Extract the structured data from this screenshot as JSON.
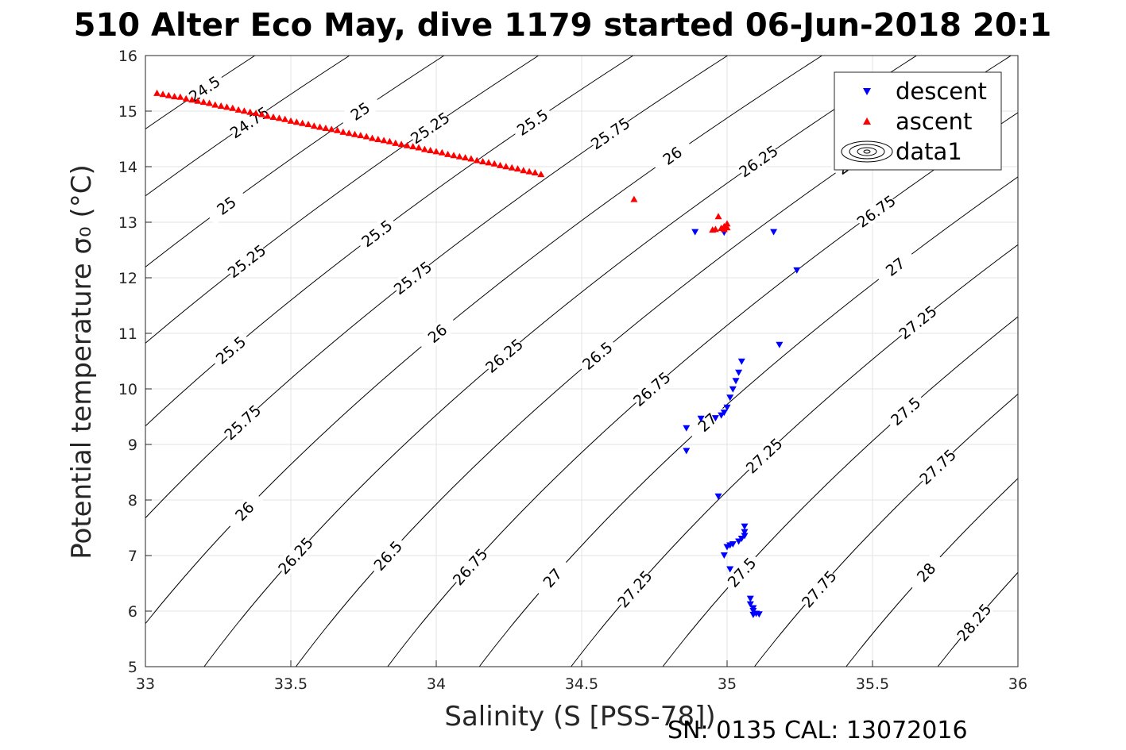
{
  "chart_data": {
    "type": "scatter",
    "title": "510 Alter Eco May, dive 1179 started 06-Jun-2018 20:1",
    "xlabel": "Salinity (S [PSS-78])",
    "ylabel": "Potential temperature σ₀ (°C)",
    "footer": "SN: 0135  CAL: 13072016",
    "xlim": [
      33,
      36
    ],
    "ylim": [
      5,
      16
    ],
    "xticks": [
      33,
      33.5,
      34,
      34.5,
      35,
      35.5,
      36
    ],
    "xtick_labels": [
      "33",
      "33.5",
      "34",
      "34.5",
      "35",
      "35.5",
      "36"
    ],
    "yticks": [
      5,
      6,
      7,
      8,
      9,
      10,
      11,
      12,
      13,
      14,
      15,
      16
    ],
    "ytick_labels": [
      "5",
      "6",
      "7",
      "8",
      "9",
      "10",
      "11",
      "12",
      "13",
      "14",
      "15",
      "16"
    ],
    "grid": true,
    "legend_position": "top-right",
    "legend": [
      {
        "label": "descent",
        "marker": "triangle-down",
        "color": "#0000ff"
      },
      {
        "label": "ascent",
        "marker": "triangle-up",
        "color": "#ff0000"
      },
      {
        "label": "data1",
        "marker": "contour",
        "color": "#000000"
      }
    ],
    "contours": {
      "levels": [
        24.5,
        24.75,
        25,
        25.25,
        25.5,
        25.75,
        26,
        26.25,
        26.5,
        26.75,
        27,
        27.25,
        27.5,
        27.75,
        28,
        28.25
      ],
      "level_labels": [
        "24.5",
        "24.75",
        "25",
        "25.25",
        "25.5",
        "25.75",
        "26",
        "26.25",
        "26.5",
        "26.75",
        "27",
        "27.25",
        "27.5",
        "27.75",
        "28",
        "28.25"
      ]
    },
    "series": [
      {
        "name": "descent",
        "color": "#0000ff",
        "marker": "triangle-down",
        "points": [
          [
            34.89,
            12.82
          ],
          [
            34.99,
            12.81
          ],
          [
            35.16,
            12.82
          ],
          [
            35.24,
            12.13
          ],
          [
            35.18,
            10.79
          ],
          [
            35.05,
            10.49
          ],
          [
            35.04,
            10.29
          ],
          [
            35.03,
            10.14
          ],
          [
            35.02,
            9.99
          ],
          [
            35.01,
            9.84
          ],
          [
            35.0,
            9.66
          ],
          [
            34.99,
            9.57
          ],
          [
            34.98,
            9.52
          ],
          [
            34.96,
            9.47
          ],
          [
            34.91,
            9.46
          ],
          [
            34.86,
            9.29
          ],
          [
            34.86,
            8.88
          ],
          [
            34.97,
            8.06
          ],
          [
            35.06,
            7.52
          ],
          [
            35.06,
            7.42
          ],
          [
            35.06,
            7.35
          ],
          [
            35.05,
            7.3
          ],
          [
            35.04,
            7.25
          ],
          [
            35.02,
            7.2
          ],
          [
            35.01,
            7.18
          ],
          [
            35.0,
            7.15
          ],
          [
            34.99,
            7.0
          ],
          [
            35.01,
            6.75
          ],
          [
            35.08,
            6.22
          ],
          [
            35.08,
            6.12
          ],
          [
            35.09,
            6.05
          ],
          [
            35.09,
            6.0
          ],
          [
            35.1,
            5.95
          ],
          [
            35.11,
            5.94
          ],
          [
            35.09,
            5.93
          ]
        ]
      },
      {
        "name": "ascent",
        "color": "#ff0000",
        "marker": "triangle-up",
        "points": [
          [
            33.04,
            15.33
          ],
          [
            33.06,
            15.31
          ],
          [
            33.08,
            15.29
          ],
          [
            33.1,
            15.27
          ],
          [
            33.12,
            15.26
          ],
          [
            33.14,
            15.23
          ],
          [
            33.16,
            15.21
          ],
          [
            33.18,
            15.19
          ],
          [
            33.2,
            15.17
          ],
          [
            33.22,
            15.15
          ],
          [
            33.24,
            15.12
          ],
          [
            33.26,
            15.1
          ],
          [
            33.28,
            15.08
          ],
          [
            33.3,
            15.06
          ],
          [
            33.32,
            15.03
          ],
          [
            33.34,
            15.01
          ],
          [
            33.36,
            14.99
          ],
          [
            33.38,
            14.97
          ],
          [
            33.4,
            14.95
          ],
          [
            33.42,
            14.92
          ],
          [
            33.44,
            14.9
          ],
          [
            33.46,
            14.88
          ],
          [
            33.48,
            14.86
          ],
          [
            33.5,
            14.83
          ],
          [
            33.52,
            14.81
          ],
          [
            33.54,
            14.79
          ],
          [
            33.56,
            14.77
          ],
          [
            33.58,
            14.74
          ],
          [
            33.6,
            14.72
          ],
          [
            33.62,
            14.7
          ],
          [
            33.64,
            14.68
          ],
          [
            33.66,
            14.66
          ],
          [
            33.68,
            14.63
          ],
          [
            33.7,
            14.61
          ],
          [
            33.72,
            14.59
          ],
          [
            33.74,
            14.57
          ],
          [
            33.76,
            14.55
          ],
          [
            33.78,
            14.52
          ],
          [
            33.8,
            14.5
          ],
          [
            33.82,
            14.48
          ],
          [
            33.84,
            14.46
          ],
          [
            33.86,
            14.43
          ],
          [
            33.88,
            14.41
          ],
          [
            33.9,
            14.39
          ],
          [
            33.92,
            14.37
          ],
          [
            33.94,
            14.35
          ],
          [
            33.96,
            14.32
          ],
          [
            33.98,
            14.3
          ],
          [
            34.0,
            14.28
          ],
          [
            34.02,
            14.26
          ],
          [
            34.04,
            14.23
          ],
          [
            34.06,
            14.21
          ],
          [
            34.08,
            14.19
          ],
          [
            34.1,
            14.17
          ],
          [
            34.12,
            14.15
          ],
          [
            34.14,
            14.12
          ],
          [
            34.16,
            14.1
          ],
          [
            34.18,
            14.08
          ],
          [
            34.2,
            14.06
          ],
          [
            34.22,
            14.03
          ],
          [
            34.24,
            14.01
          ],
          [
            34.26,
            13.99
          ],
          [
            34.28,
            13.97
          ],
          [
            34.3,
            13.94
          ],
          [
            34.32,
            13.92
          ],
          [
            34.34,
            13.9
          ],
          [
            34.36,
            13.87
          ],
          [
            34.68,
            13.42
          ],
          [
            34.96,
            12.88
          ],
          [
            34.97,
            13.11
          ],
          [
            34.98,
            12.9
          ],
          [
            34.99,
            12.93
          ],
          [
            35.0,
            12.98
          ],
          [
            35.0,
            12.91
          ],
          [
            34.99,
            12.88
          ],
          [
            34.95,
            12.87
          ]
        ]
      }
    ]
  }
}
